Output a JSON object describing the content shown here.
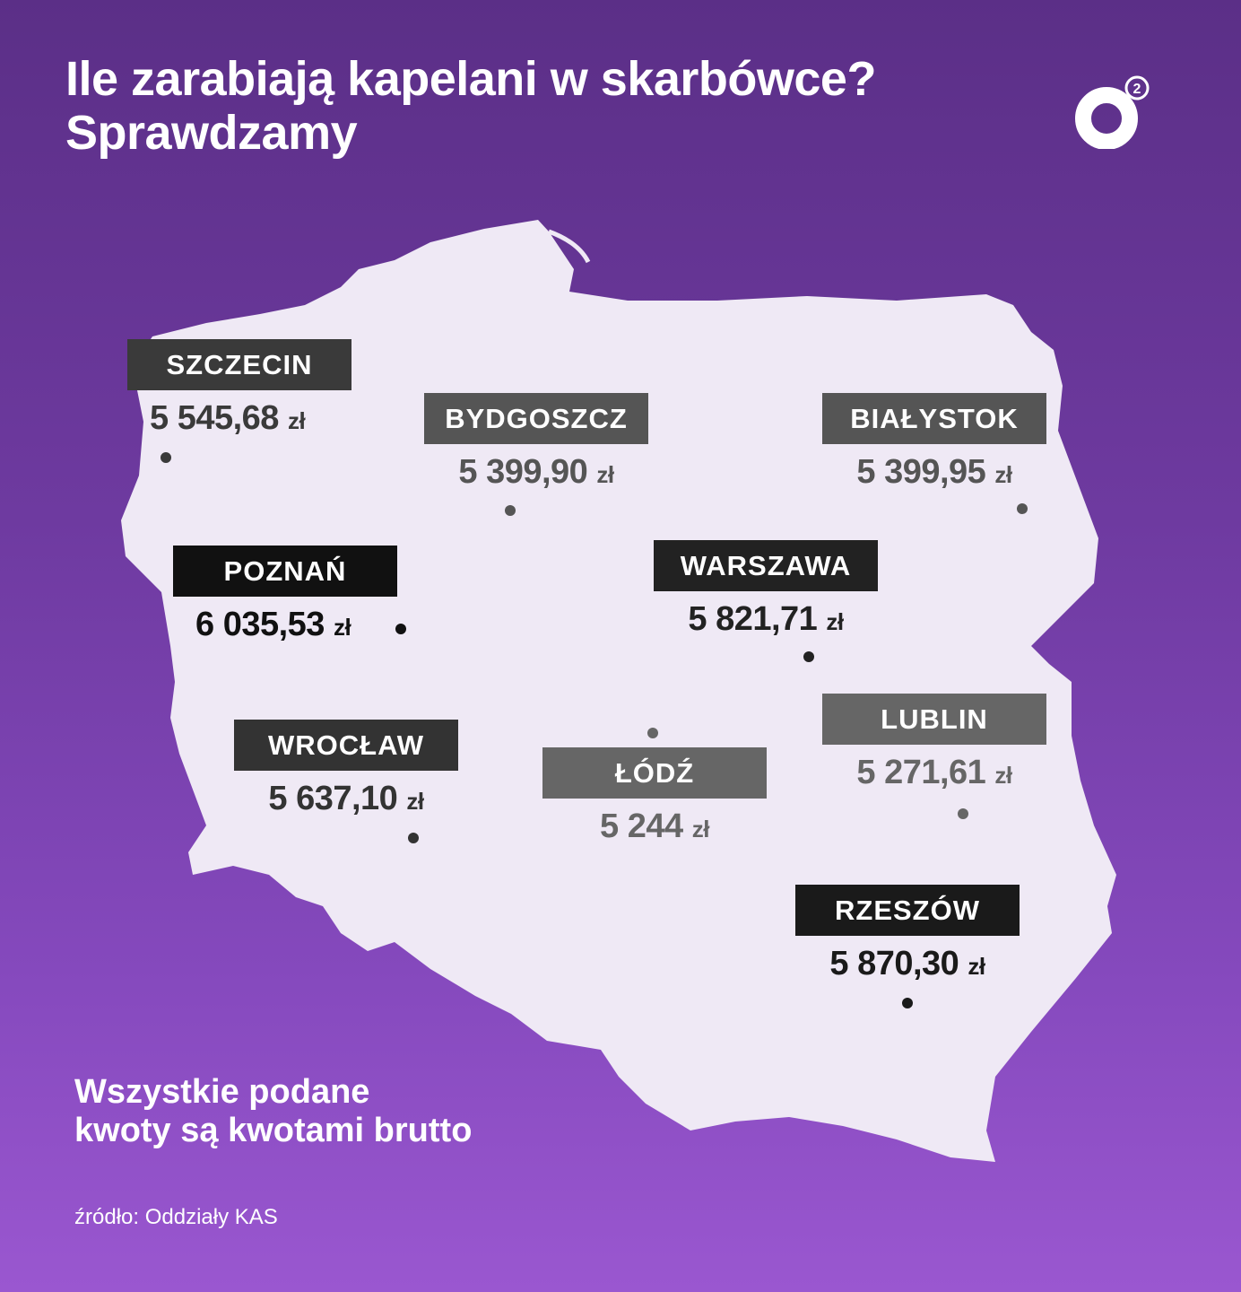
{
  "title": [
    "Ile zarabiają kapelani w skarbówce?",
    "Sprawdzamy"
  ],
  "logo": "o2",
  "colors": {
    "map_fill": "#efe9f5",
    "bg_top": "#5b2f87",
    "bg_bottom": "#9a57d0"
  },
  "cities": [
    {
      "name": "SZCZECIN",
      "amount": "5 545,68",
      "unit": "zł",
      "color": "#3a3a3a"
    },
    {
      "name": "BYDGOSZCZ",
      "amount": "5 399,90",
      "unit": "zł",
      "color": "#555555"
    },
    {
      "name": "BIAŁYSTOK",
      "amount": "5 399,95",
      "unit": "zł",
      "color": "#555555"
    },
    {
      "name": "POZNAŃ",
      "amount": "6 035,53",
      "unit": "zł",
      "color": "#111111"
    },
    {
      "name": "WARSZAWA",
      "amount": "5 821,71",
      "unit": "zł",
      "color": "#222222"
    },
    {
      "name": "WROCŁAW",
      "amount": "5 637,10",
      "unit": "zł",
      "color": "#333333"
    },
    {
      "name": "ŁÓDŹ",
      "amount": "5 244",
      "unit": "zł",
      "color": "#666666"
    },
    {
      "name": "LUBLIN",
      "amount": "5 271,61",
      "unit": "zł",
      "color": "#666666"
    },
    {
      "name": "RZESZÓW",
      "amount": "5 870,30",
      "unit": "zł",
      "color": "#1a1a1a"
    }
  ],
  "note": [
    "Wszystkie podane",
    "kwoty są kwotami brutto"
  ],
  "source": "źródło: Oddziały KAS"
}
